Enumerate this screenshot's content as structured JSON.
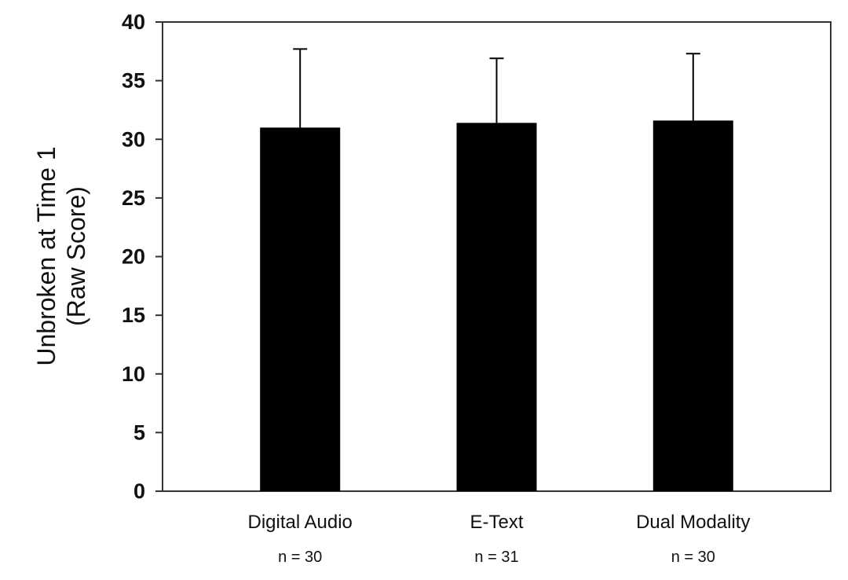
{
  "chart_data": {
    "type": "bar",
    "categories": [
      "Digital Audio",
      "E-Text",
      "Dual Modality"
    ],
    "sample_sizes": [
      "n = 30",
      "n = 31",
      "n = 30"
    ],
    "values": [
      31.0,
      31.4,
      31.6
    ],
    "error_upper": [
      37.7,
      36.9,
      37.3
    ],
    "ylabel_line1": "Unbroken at Time 1",
    "ylabel_line2": "(Raw Score)",
    "ylim": [
      0,
      40
    ],
    "yticks": [
      "0",
      "5",
      "10",
      "15",
      "20",
      "25",
      "30",
      "35",
      "40"
    ],
    "bar_color": "#000000",
    "grid": false,
    "legend": "none"
  }
}
